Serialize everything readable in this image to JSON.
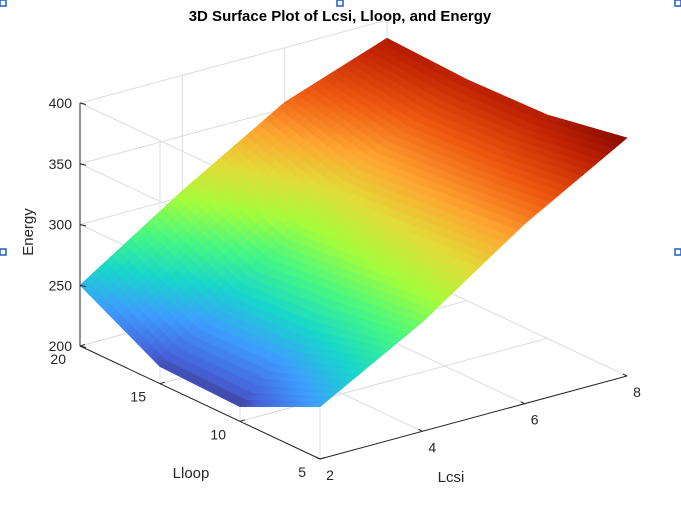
{
  "chart_data": {
    "type": "surface3d",
    "title": "3D Surface Plot of Lcsi, Lloop, and Energy",
    "xlabel": "Lcsi",
    "ylabel": "Lloop",
    "zlabel": "Energy",
    "colormap": "turbo",
    "xlim": [
      2,
      8
    ],
    "ylim": [
      5,
      20
    ],
    "zlim": [
      200,
      400
    ],
    "x_ticks": [
      2,
      4,
      6,
      8
    ],
    "y_ticks": [
      5,
      10,
      15,
      20
    ],
    "z_ticks": [
      200,
      250,
      300,
      350,
      400
    ],
    "grid": true,
    "x": [
      2,
      4,
      6,
      8
    ],
    "y": [
      5,
      10,
      15,
      20
    ],
    "z": [
      [
        243,
        290,
        348,
        396
      ],
      [
        212,
        282,
        342,
        384
      ],
      [
        214,
        275,
        336,
        382
      ],
      [
        250,
        305,
        355,
        385
      ]
    ]
  }
}
